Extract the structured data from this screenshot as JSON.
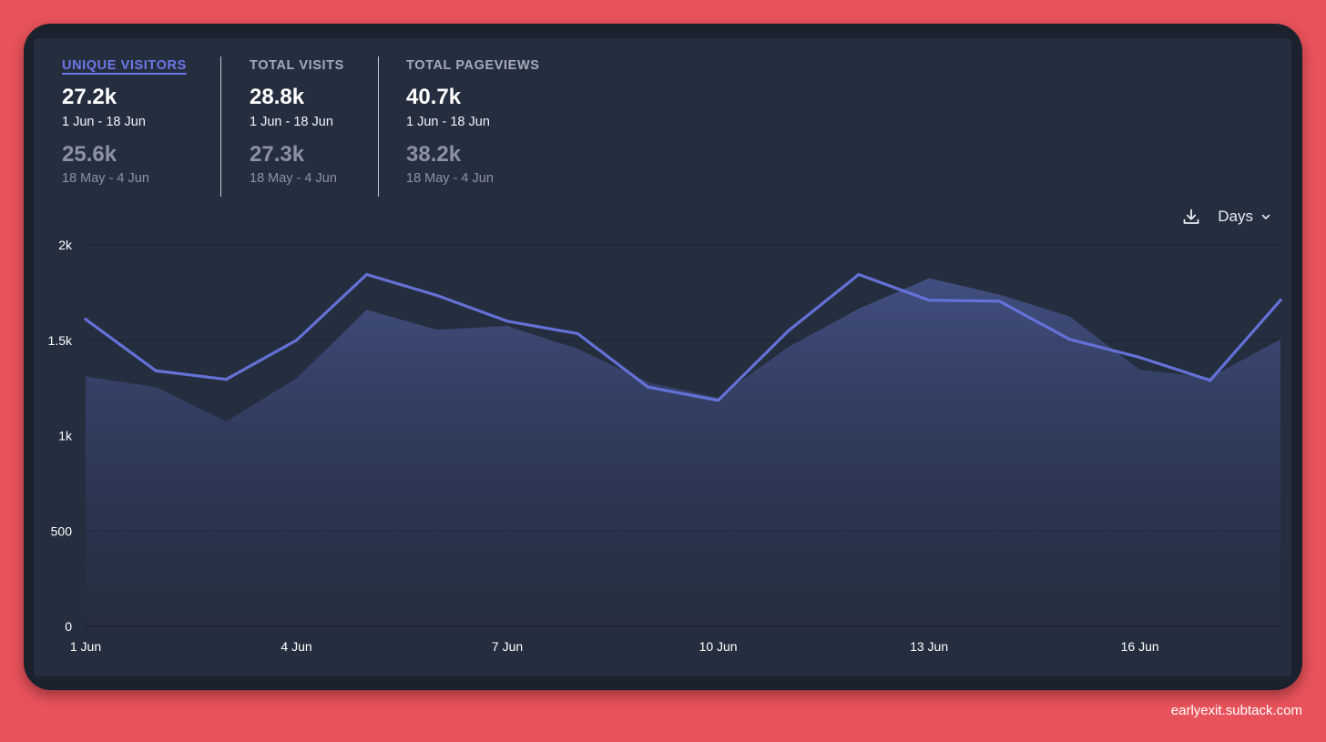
{
  "stats": [
    {
      "label": "UNIQUE VISITORS",
      "value": "27.2k",
      "range": "1 Jun - 18 Jun",
      "prev_value": "25.6k",
      "prev_range": "18 May - 4 Jun",
      "active": true
    },
    {
      "label": "TOTAL VISITS",
      "value": "28.8k",
      "range": "1 Jun - 18 Jun",
      "prev_value": "27.3k",
      "prev_range": "18 May - 4 Jun",
      "active": false
    },
    {
      "label": "TOTAL PAGEVIEWS",
      "value": "40.7k",
      "range": "1 Jun - 18 Jun",
      "prev_value": "38.2k",
      "prev_range": "18 May - 4 Jun",
      "active": false
    }
  ],
  "toolbar": {
    "download_icon": "download-icon",
    "interval_label": "Days",
    "interval_icon": "chevron-down-icon"
  },
  "colors": {
    "background": "#e8525a",
    "frame": "#1b212d",
    "panel": "#252e3f",
    "accent": "#6d77e6",
    "line": "#6471d6",
    "muted": "#8b93a3"
  },
  "watermark": "earlyexit.subtack.com",
  "chart_data": {
    "type": "line",
    "title": "",
    "xlabel": "",
    "ylabel": "",
    "ylim": [
      0,
      2000
    ],
    "yticks": [
      0,
      500,
      1000,
      1500,
      2000
    ],
    "ytick_labels": [
      "0",
      "500",
      "1k",
      "1.5k",
      "2k"
    ],
    "x": [
      "1 Jun",
      "2 Jun",
      "3 Jun",
      "4 Jun",
      "5 Jun",
      "6 Jun",
      "7 Jun",
      "8 Jun",
      "9 Jun",
      "10 Jun",
      "11 Jun",
      "12 Jun",
      "13 Jun",
      "14 Jun",
      "15 Jun",
      "16 Jun",
      "17 Jun",
      "18 Jun"
    ],
    "xtick_labels": [
      "1 Jun",
      "4 Jun",
      "7 Jun",
      "10 Jun",
      "13 Jun",
      "16 Jun"
    ],
    "xtick_indices": [
      0,
      3,
      6,
      9,
      12,
      15
    ],
    "grid": true,
    "series": [
      {
        "name": "1 Jun - 18 Jun",
        "style": "line",
        "values": [
          1610,
          1340,
          1295,
          1500,
          1845,
          1735,
          1600,
          1535,
          1255,
          1185,
          1550,
          1845,
          1710,
          1705,
          1505,
          1410,
          1290,
          1710
        ]
      },
      {
        "name": "18 May - 4 Jun",
        "style": "area",
        "values": [
          1310,
          1255,
          1075,
          1300,
          1660,
          1555,
          1575,
          1455,
          1280,
          1200,
          1465,
          1665,
          1825,
          1740,
          1625,
          1345,
          1305,
          1505
        ]
      }
    ]
  }
}
